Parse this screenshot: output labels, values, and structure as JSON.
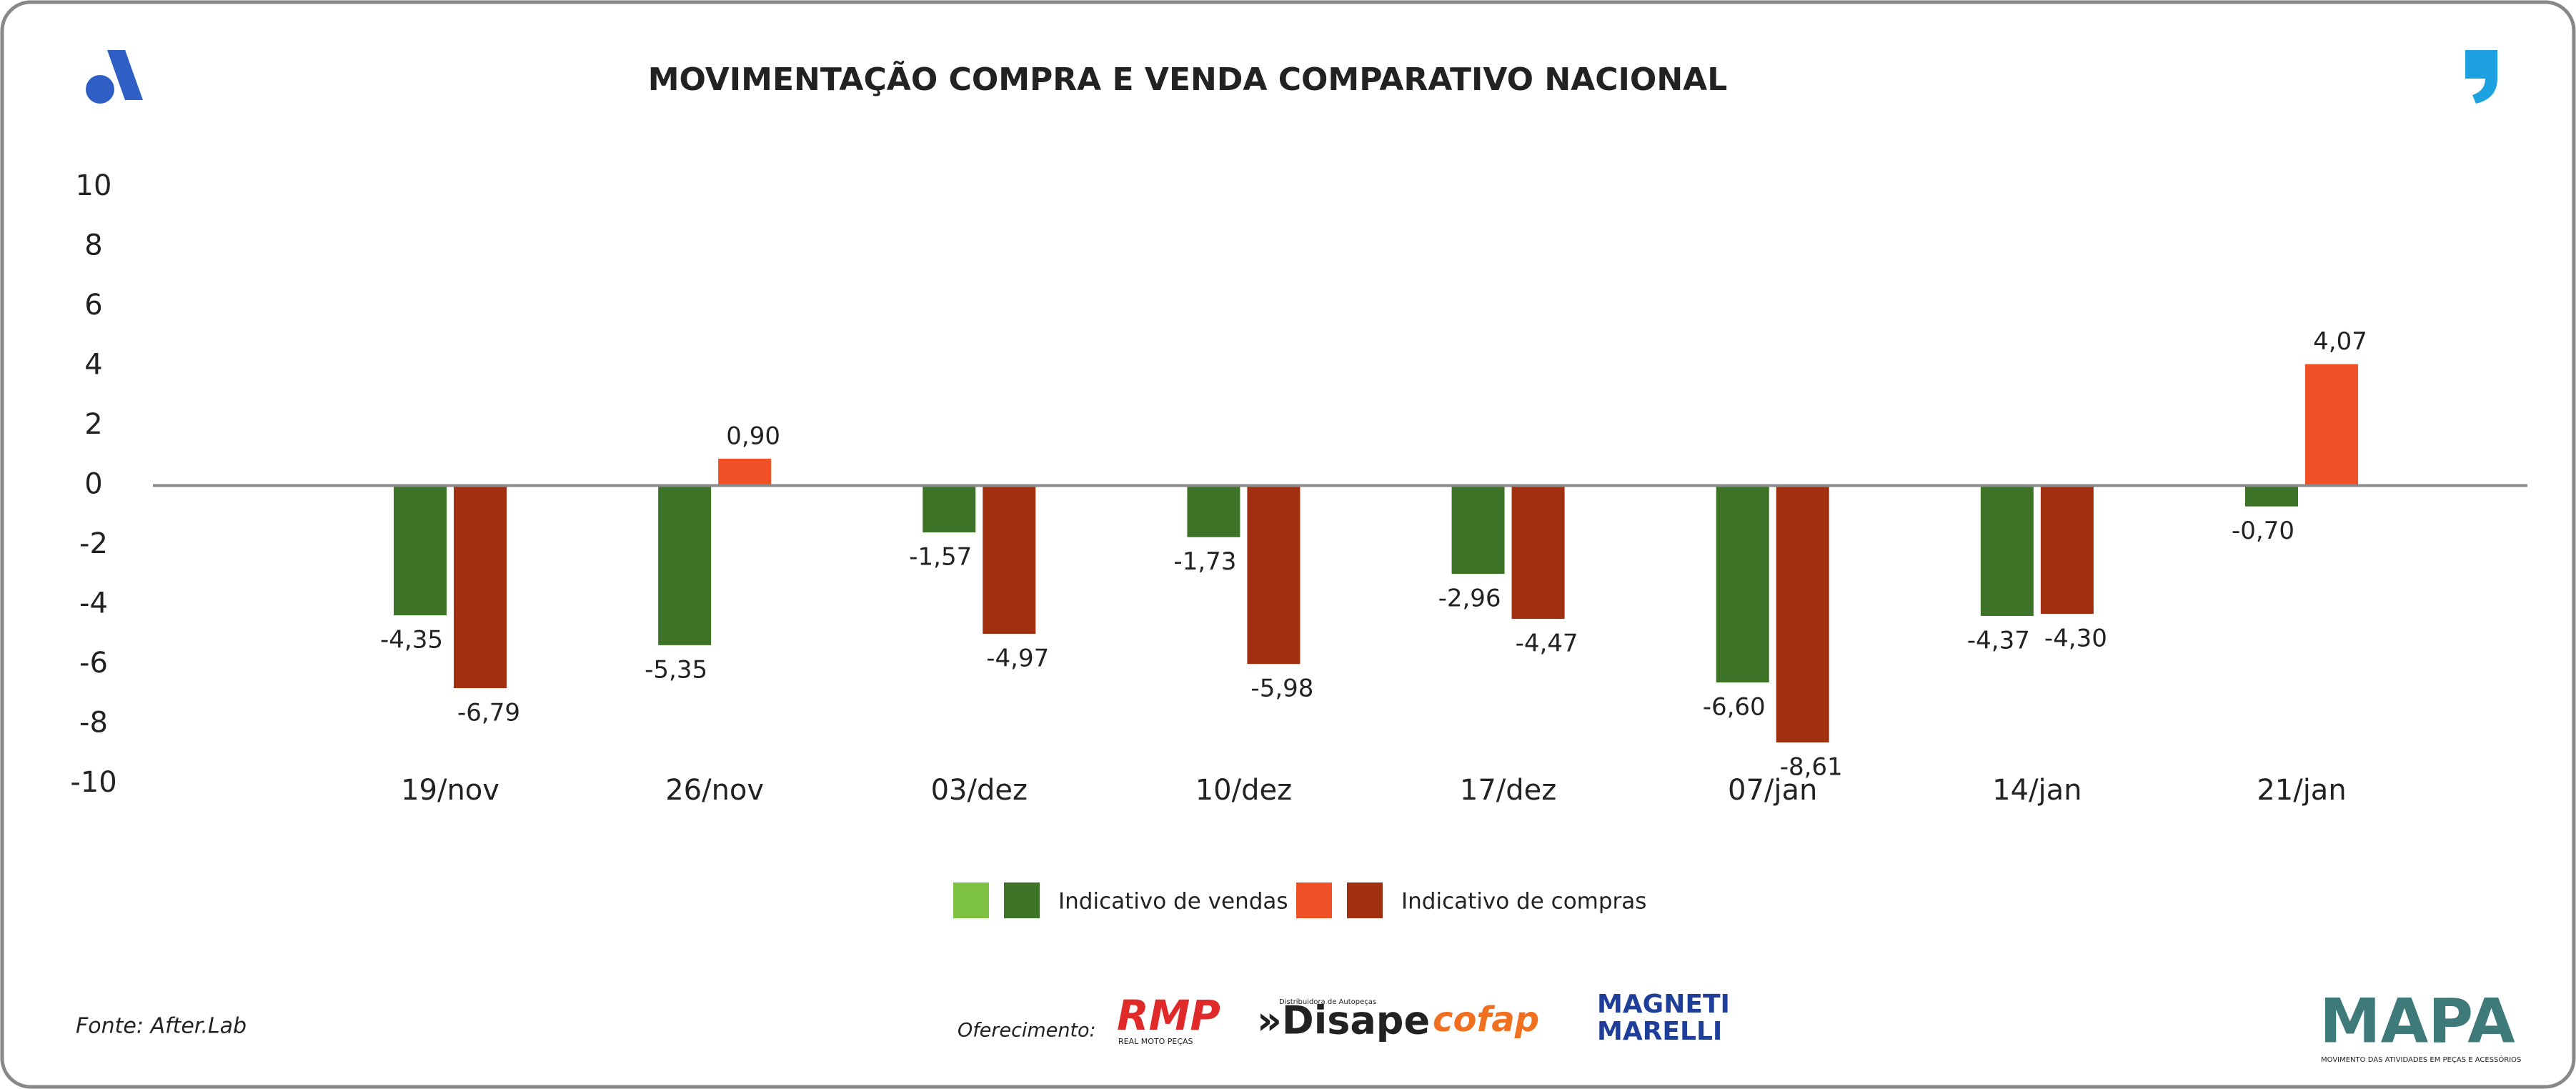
{
  "chart_data": {
    "type": "bar",
    "title": "MOVIMENTAÇÃO COMPRA E VENDA COMPARATIVO NACIONAL",
    "categories": [
      "19/nov",
      "26/nov",
      "03/dez",
      "10/dez",
      "17/dez",
      "07/jan",
      "14/jan",
      "21/jan"
    ],
    "series": [
      {
        "name": "Indicativo de vendas",
        "color": "#7dc242",
        "negative_color": "#3d7326",
        "values": [
          -4.35,
          -5.35,
          -1.57,
          -1.73,
          -2.96,
          -6.6,
          -4.37,
          -0.7
        ],
        "value_labels": [
          "-4,35",
          "-5,35",
          "-1,57",
          "-1,73",
          "-2,96",
          "-6,60",
          "-4,37",
          "-0,70"
        ]
      },
      {
        "name": "Indicativo de compras",
        "color": "#f05025",
        "negative_color": "#a0300f",
        "values": [
          -6.79,
          0.9,
          -4.97,
          -5.98,
          -4.47,
          -8.61,
          -4.3,
          4.07
        ],
        "value_labels": [
          "-6,79",
          "0,90",
          "-4,97",
          "-5,98",
          "-4,47",
          "-8,61",
          "-4,30",
          "4,07"
        ]
      }
    ],
    "ylim": [
      -10,
      10
    ],
    "yticks": [
      10,
      8,
      6,
      4,
      2,
      0,
      -2,
      -4,
      -6,
      -8,
      -10
    ],
    "grid": false
  },
  "footer": {
    "source": "Fonte: After.Lab",
    "sponsor_label": "Oferecimento:",
    "sponsors": [
      {
        "name": "RMP",
        "tagline": "REAL MOTO PEÇAS"
      },
      {
        "name": "»Disape",
        "tagline": "Distribuidora de Autopeças"
      },
      {
        "name": "cofap"
      },
      {
        "name": "MAGNETI",
        "name2": "MARELLI"
      }
    ],
    "brand": "MAPA",
    "brand_tagline": "MOVIMENTO DAS ATIVIDADES EM PEÇAS E ACESSÓRIOS"
  }
}
